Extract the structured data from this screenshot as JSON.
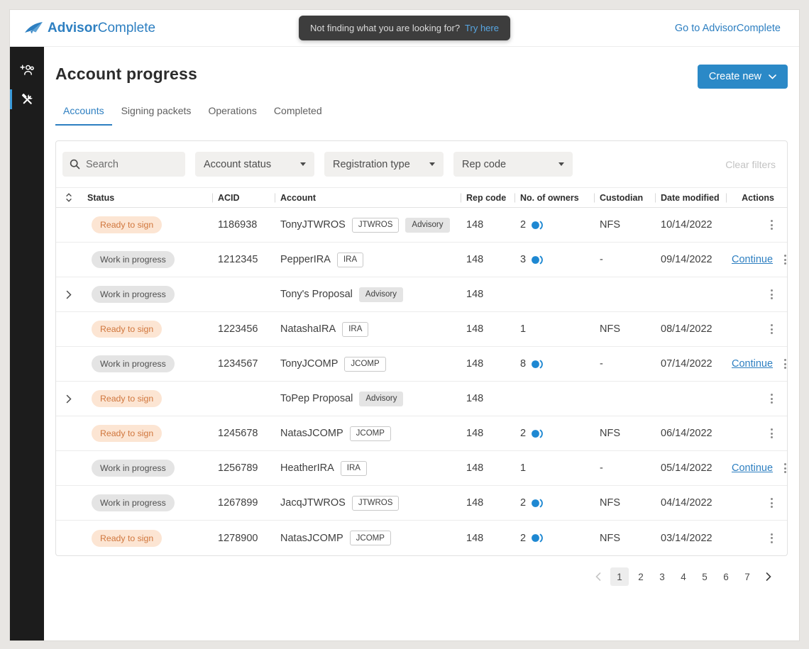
{
  "colors": {
    "accent_blue": "#2d7fc1",
    "button_blue": "#2b89c7",
    "sidebar_bg": "#1c1c1c",
    "sidebar_active_indicator": "#3a9ad9",
    "ready_badge_bg": "#fce5d3",
    "ready_badge_text": "#d0763c",
    "wip_badge_bg": "#e4e4e4",
    "wip_badge_text": "#4f4f4f",
    "owners_icon_blue": "#1e88d2",
    "tooltip_bg": "#3d3d3d"
  },
  "header": {
    "logo_bold": "Advisor",
    "logo_light": "Complete",
    "tooltip_text": "Not finding what you are looking for?",
    "tooltip_link": "Try here",
    "external_link": "Go to AdvisorComplete"
  },
  "sidebar": {
    "items": [
      {
        "icon": "add-users-icon",
        "active": false
      },
      {
        "icon": "tools-icon",
        "active": true
      }
    ]
  },
  "page": {
    "title": "Account progress",
    "create_button_label": "Create new",
    "tabs": [
      {
        "label": "Accounts",
        "active": true
      },
      {
        "label": "Signing packets",
        "active": false
      },
      {
        "label": "Operations",
        "active": false
      },
      {
        "label": "Completed",
        "active": false
      }
    ]
  },
  "filters": {
    "search_placeholder": "Search",
    "dropdowns": [
      "Account status",
      "Registration type",
      "Rep code"
    ],
    "clear_filters_label": "Clear filters"
  },
  "table": {
    "columns": [
      "Status",
      "ACID",
      "Account",
      "Rep code",
      "No. of owners",
      "Custodian",
      "Date modified",
      "Actions"
    ],
    "continue_label": "Continue",
    "rows": [
      {
        "expandable": false,
        "status": "Ready to sign",
        "status_type": "ready",
        "acid": "1186938",
        "account": "TonyJTWROS",
        "tags": [
          {
            "label": "JTWROS",
            "style": "outline"
          },
          {
            "label": "Advisory",
            "style": "fill"
          }
        ],
        "rep_code": "148",
        "owners": "2",
        "owners_icon": true,
        "custodian": "NFS",
        "date_modified": "10/14/2022",
        "continue_action": false
      },
      {
        "expandable": false,
        "status": "Work in progress",
        "status_type": "wip",
        "acid": "1212345",
        "account": "PepperIRA",
        "tags": [
          {
            "label": "IRA",
            "style": "outline"
          }
        ],
        "rep_code": "148",
        "owners": "3",
        "owners_icon": true,
        "custodian": "-",
        "date_modified": "09/14/2022",
        "continue_action": true
      },
      {
        "expandable": true,
        "status": "Work in progress",
        "status_type": "wip",
        "acid": "",
        "account": "Tony's Proposal",
        "tags": [
          {
            "label": "Advisory",
            "style": "fill"
          }
        ],
        "rep_code": "148",
        "owners": "",
        "owners_icon": false,
        "custodian": "",
        "date_modified": "",
        "continue_action": false
      },
      {
        "expandable": false,
        "status": "Ready to sign",
        "status_type": "ready",
        "acid": "1223456",
        "account": "NatashaIRA",
        "tags": [
          {
            "label": "IRA",
            "style": "outline"
          }
        ],
        "rep_code": "148",
        "owners": "1",
        "owners_icon": false,
        "custodian": "NFS",
        "date_modified": "08/14/2022",
        "continue_action": false
      },
      {
        "expandable": false,
        "status": "Work in progress",
        "status_type": "wip",
        "acid": "1234567",
        "account": "TonyJCOMP",
        "tags": [
          {
            "label": "JCOMP",
            "style": "outline"
          }
        ],
        "rep_code": "148",
        "owners": "8",
        "owners_icon": true,
        "custodian": "-",
        "date_modified": "07/14/2022",
        "continue_action": true
      },
      {
        "expandable": true,
        "status": "Ready to sign",
        "status_type": "ready",
        "acid": "",
        "account": "ToPep Proposal",
        "tags": [
          {
            "label": "Advisory",
            "style": "fill"
          }
        ],
        "rep_code": "148",
        "owners": "",
        "owners_icon": false,
        "custodian": "",
        "date_modified": "",
        "continue_action": false
      },
      {
        "expandable": false,
        "status": "Ready to sign",
        "status_type": "ready",
        "acid": "1245678",
        "account": "NatasJCOMP",
        "tags": [
          {
            "label": "JCOMP",
            "style": "outline"
          }
        ],
        "rep_code": "148",
        "owners": "2",
        "owners_icon": true,
        "custodian": "NFS",
        "date_modified": "06/14/2022",
        "continue_action": false
      },
      {
        "expandable": false,
        "status": "Work in progress",
        "status_type": "wip",
        "acid": "1256789",
        "account": "HeatherIRA",
        "tags": [
          {
            "label": "IRA",
            "style": "outline"
          }
        ],
        "rep_code": "148",
        "owners": "1",
        "owners_icon": false,
        "custodian": "-",
        "date_modified": "05/14/2022",
        "continue_action": true
      },
      {
        "expandable": false,
        "status": "Work in progress",
        "status_type": "wip",
        "acid": "1267899",
        "account": "JacqJTWROS",
        "tags": [
          {
            "label": "JTWROS",
            "style": "outline"
          }
        ],
        "rep_code": "148",
        "owners": "2",
        "owners_icon": true,
        "custodian": "NFS",
        "date_modified": "04/14/2022",
        "continue_action": false
      },
      {
        "expandable": false,
        "status": "Ready to sign",
        "status_type": "ready",
        "acid": "1278900",
        "account": "NatasJCOMP",
        "tags": [
          {
            "label": "JCOMP",
            "style": "outline"
          }
        ],
        "rep_code": "148",
        "owners": "2",
        "owners_icon": true,
        "custodian": "NFS",
        "date_modified": "03/14/2022",
        "continue_action": false
      }
    ]
  },
  "pagination": {
    "current_page": "1",
    "pages": [
      "1",
      "2",
      "3",
      "4",
      "5",
      "6",
      "7"
    ]
  }
}
